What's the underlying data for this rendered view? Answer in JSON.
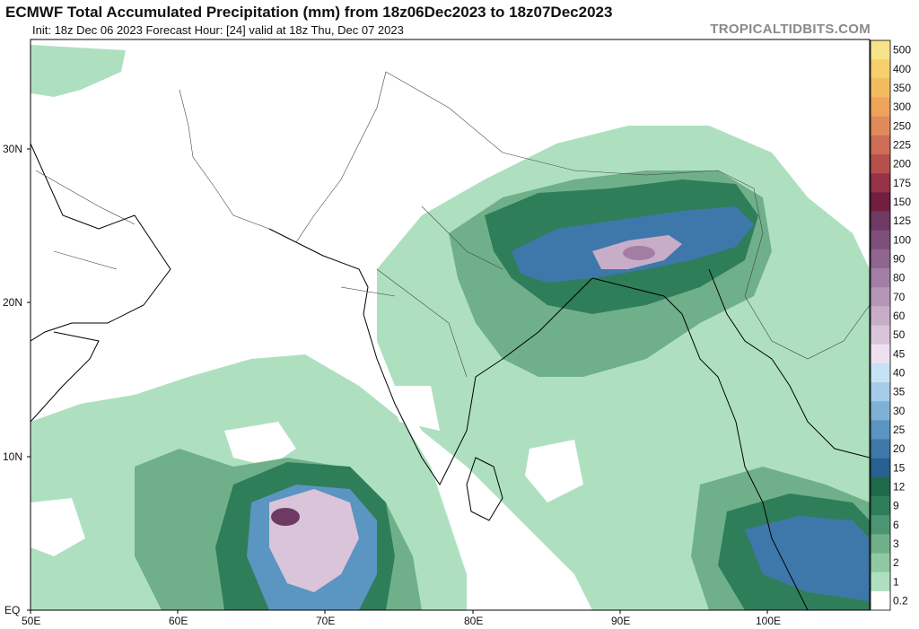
{
  "title": "ECMWF Total Accumulated Precipitation (mm) from 18z06Dec2023 to 18z07Dec2023",
  "subtitle": "Init: 18z Dec 06 2023   Forecast Hour: [24]   valid at 18z Thu, Dec 07 2023",
  "credit": "TROPICALTIDBITS.COM",
  "map": {
    "lat_labels": [
      "30N",
      "20N",
      "10N",
      "EQ"
    ],
    "lon_labels": [
      "50E",
      "60E",
      "70E",
      "80E",
      "90E",
      "100E"
    ]
  },
  "colorbar": {
    "levels": [
      {
        "label": "500",
        "color": "#f7e48a"
      },
      {
        "label": "400",
        "color": "#f5d06c"
      },
      {
        "label": "350",
        "color": "#f2bb5e"
      },
      {
        "label": "300",
        "color": "#eea35a"
      },
      {
        "label": "250",
        "color": "#e08a5a"
      },
      {
        "label": "225",
        "color": "#cd6d55"
      },
      {
        "label": "200",
        "color": "#b5504c"
      },
      {
        "label": "175",
        "color": "#963348"
      },
      {
        "label": "150",
        "color": "#741e3f"
      },
      {
        "label": "125",
        "color": "#6e3a63"
      },
      {
        "label": "100",
        "color": "#7e4f7b"
      },
      {
        "label": "90",
        "color": "#8f6690"
      },
      {
        "label": "80",
        "color": "#a27ea4"
      },
      {
        "label": "70",
        "color": "#b696b8"
      },
      {
        "label": "60",
        "color": "#c8adc9"
      },
      {
        "label": "50",
        "color": "#d9c4da"
      },
      {
        "label": "45",
        "color": "#efe0f0"
      },
      {
        "label": "40",
        "color": "#c7e2f4"
      },
      {
        "label": "35",
        "color": "#a4cce8"
      },
      {
        "label": "30",
        "color": "#7fb1d7"
      },
      {
        "label": "25",
        "color": "#5b95c1"
      },
      {
        "label": "20",
        "color": "#3e78aa"
      },
      {
        "label": "15",
        "color": "#2a6091"
      },
      {
        "label": "12",
        "color": "#1f6a4a"
      },
      {
        "label": "9",
        "color": "#2f7e5a"
      },
      {
        "label": "6",
        "color": "#4b9670"
      },
      {
        "label": "3",
        "color": "#6fb08a"
      },
      {
        "label": "2",
        "color": "#8fc9a4"
      },
      {
        "label": "1",
        "color": "#aee0c0"
      },
      {
        "label": "0.2",
        "color": "#ffffff"
      }
    ]
  }
}
